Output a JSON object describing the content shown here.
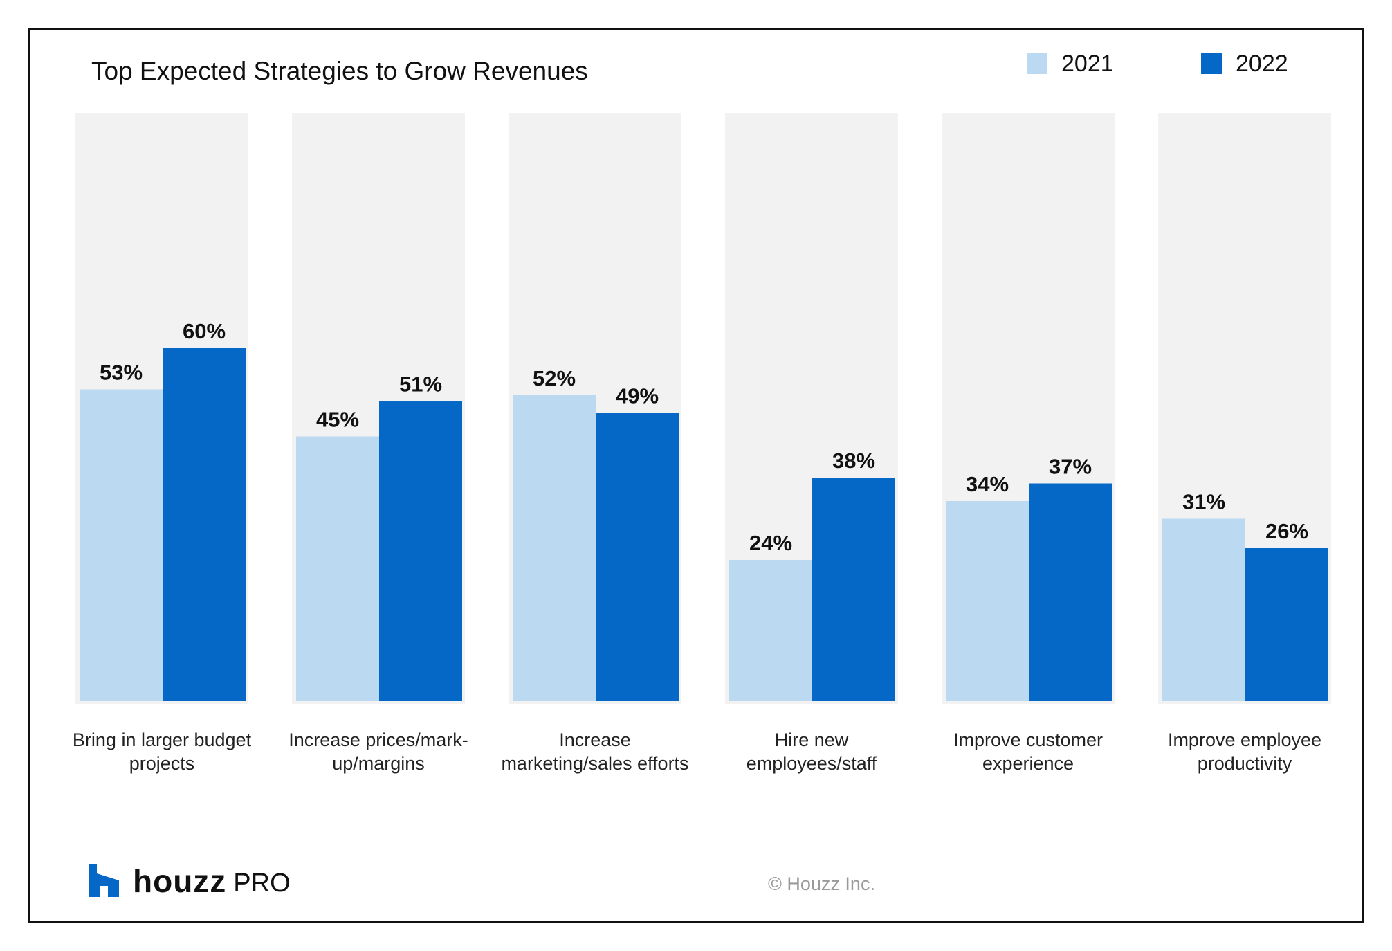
{
  "chart_data": {
    "type": "bar",
    "title": "Top Expected Strategies to Grow Revenues",
    "categories": [
      [
        "Bring in larger budget",
        "projects"
      ],
      [
        "Increase prices/mark-",
        "up/margins"
      ],
      [
        "Increase",
        "marketing/sales efforts"
      ],
      [
        "Hire new",
        "employees/staff"
      ],
      [
        "Improve customer",
        "experience"
      ],
      [
        "Improve employee",
        "productivity"
      ]
    ],
    "series": [
      {
        "name": "2021",
        "color": "#bcd9f2",
        "values": [
          53,
          45,
          52,
          24,
          34,
          31
        ],
        "labels": [
          "53%",
          "45%",
          "52%",
          "24%",
          "34%",
          "31%"
        ]
      },
      {
        "name": "2022",
        "color": "#0567c6",
        "values": [
          60,
          51,
          49,
          38,
          37,
          26
        ],
        "labels": [
          "60%",
          "51%",
          "49%",
          "38%",
          "37%",
          "26%"
        ]
      }
    ],
    "ylim": [
      0,
      100
    ],
    "background_bar_color": "#f2f2f2",
    "legend_position": "top-right",
    "grid": false
  },
  "branding": {
    "logo_word": "houzz",
    "logo_suffix": "PRO",
    "logo_color": "#0567c6",
    "copyright": "© Houzz Inc."
  }
}
